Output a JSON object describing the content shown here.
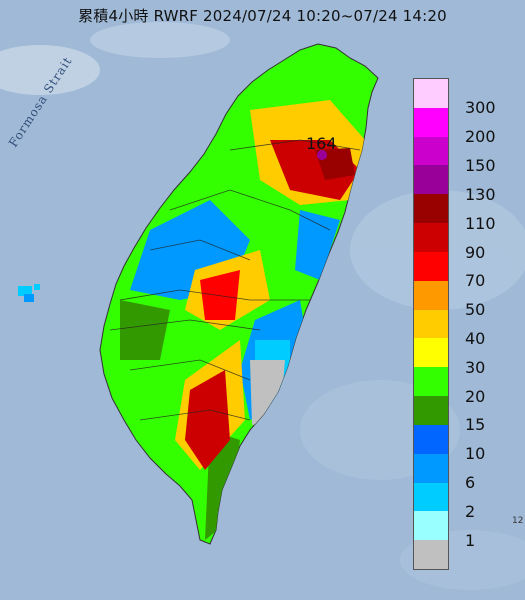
{
  "header": {
    "title": "累積4小時 RWRF 2024/07/24 10:20~07/24 14:20"
  },
  "map": {
    "sea_label": "Formosa Strait",
    "max_value_label": "164",
    "corner_label": "12"
  },
  "legend": {
    "levels": [
      {
        "label": "300",
        "color": "#ffccff"
      },
      {
        "label": "200",
        "color": "#ff00ff"
      },
      {
        "label": "150",
        "color": "#cc00cc"
      },
      {
        "label": "130",
        "color": "#990099"
      },
      {
        "label": "110",
        "color": "#990000"
      },
      {
        "label": "90",
        "color": "#cc0000"
      },
      {
        "label": "70",
        "color": "#ff0000"
      },
      {
        "label": "50",
        "color": "#ff9900"
      },
      {
        "label": "40",
        "color": "#ffcc00"
      },
      {
        "label": "30",
        "color": "#ffff00"
      },
      {
        "label": "20",
        "color": "#33ff00"
      },
      {
        "label": "15",
        "color": "#339900"
      },
      {
        "label": "10",
        "color": "#0066ff"
      },
      {
        "label": "6",
        "color": "#0099ff"
      },
      {
        "label": "2",
        "color": "#00ccff"
      },
      {
        "label": "1",
        "color": "#99ffff"
      },
      {
        "label": "",
        "color": "#c0c0c0"
      }
    ]
  }
}
